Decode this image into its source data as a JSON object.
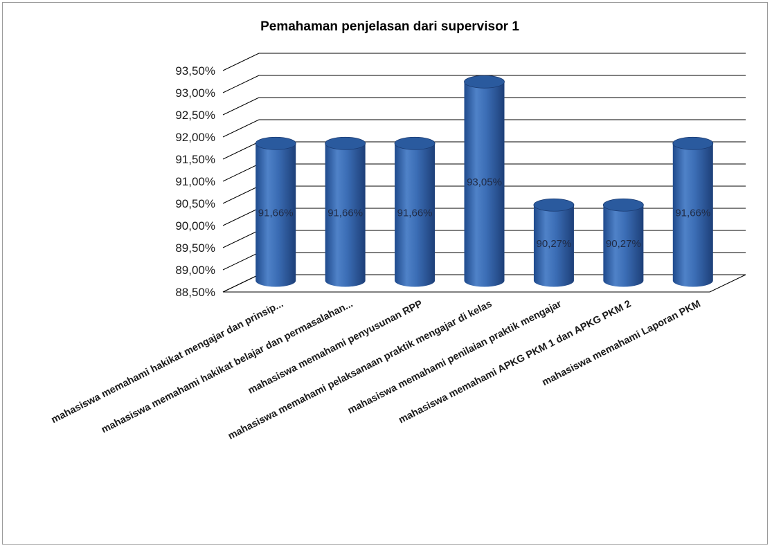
{
  "chart_data": {
    "type": "bar",
    "title": "Pemahaman penjelasan dari supervisor 1",
    "xlabel": "",
    "ylabel": "",
    "ylim": [
      88.5,
      93.5
    ],
    "y_ticks": [
      "88,50%",
      "89,00%",
      "89,50%",
      "90,00%",
      "90,50%",
      "91,00%",
      "91,50%",
      "92,00%",
      "92,50%",
      "93,00%",
      "93,50%"
    ],
    "categories": [
      "mahasiswa memahami hakikat mengajar dan prinsip...",
      "mahasiswa memahami hakikat belajar dan permasalahan...",
      "mahasiswa memahami penyusunan RPP",
      "mahasiswa memahami pelaksanaan praktik mengajar di kelas",
      "mahasiswa memahami penilaian praktik mengajar",
      "mahasiswa memahami APKG PKM 1 dan APKG PKM 2",
      "mahasiswa memahami Laporan PKM"
    ],
    "values": [
      91.66,
      91.66,
      91.66,
      93.05,
      90.27,
      90.27,
      91.66
    ],
    "data_labels": [
      "91,66%",
      "91,66%",
      "91,66%",
      "93,05%",
      "90,27%",
      "90,27%",
      "91,66%"
    ],
    "grid": true,
    "legend": "none",
    "bar_shape": "cylinder",
    "colors": {
      "bar": "#3b6db5",
      "bar_dark": "#1d3f78",
      "bar_light": "#5f8fd3",
      "top": "#2a5a9e",
      "grid": "#000000"
    }
  }
}
